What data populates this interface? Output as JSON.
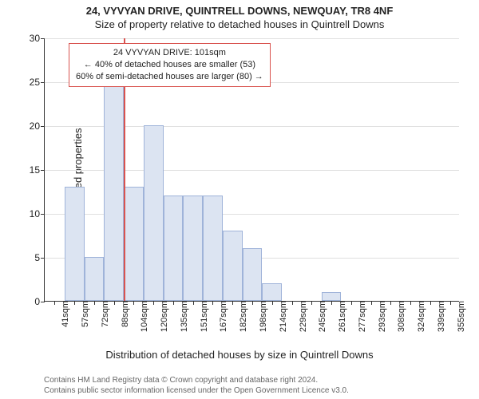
{
  "title_main": "24, VYVYAN DRIVE, QUINTRELL DOWNS, NEWQUAY, TR8 4NF",
  "title_sub": "Size of property relative to detached houses in Quintrell Downs",
  "y_axis_label": "Number of detached properties",
  "x_axis_label": "Distribution of detached houses by size in Quintrell Downs",
  "chart": {
    "type": "histogram",
    "y_max": 30,
    "y_ticks": [
      0,
      5,
      10,
      15,
      20,
      25,
      30
    ],
    "categories": [
      "41sqm",
      "57sqm",
      "72sqm",
      "88sqm",
      "104sqm",
      "120sqm",
      "135sqm",
      "151sqm",
      "167sqm",
      "182sqm",
      "198sqm",
      "214sqm",
      "229sqm",
      "245sqm",
      "261sqm",
      "277sqm",
      "293sqm",
      "308sqm",
      "324sqm",
      "339sqm",
      "355sqm"
    ],
    "values": [
      0,
      13,
      5,
      25,
      13,
      20,
      12,
      12,
      12,
      8,
      6,
      2,
      0,
      0,
      1,
      0,
      0,
      0,
      0,
      0,
      0
    ],
    "bar_fill": "#dce4f2",
    "bar_stroke": "#9fb3d9",
    "grid_color": "#e0e0e0",
    "background_color": "#ffffff",
    "axis_color": "#333333",
    "tick_fontsize": 12,
    "marker": {
      "position_category_index": 4,
      "color": "#d9534f"
    },
    "annotation": {
      "border_color": "#d9534f",
      "line1": "24 VYVYAN DRIVE: 101sqm",
      "line2": "← 40% of detached houses are smaller (53)",
      "line3": "60% of semi-detached houses are larger (80) →"
    }
  },
  "footer_line1": "Contains HM Land Registry data © Crown copyright and database right 2024.",
  "footer_line2": "Contains public sector information licensed under the Open Government Licence v3.0."
}
